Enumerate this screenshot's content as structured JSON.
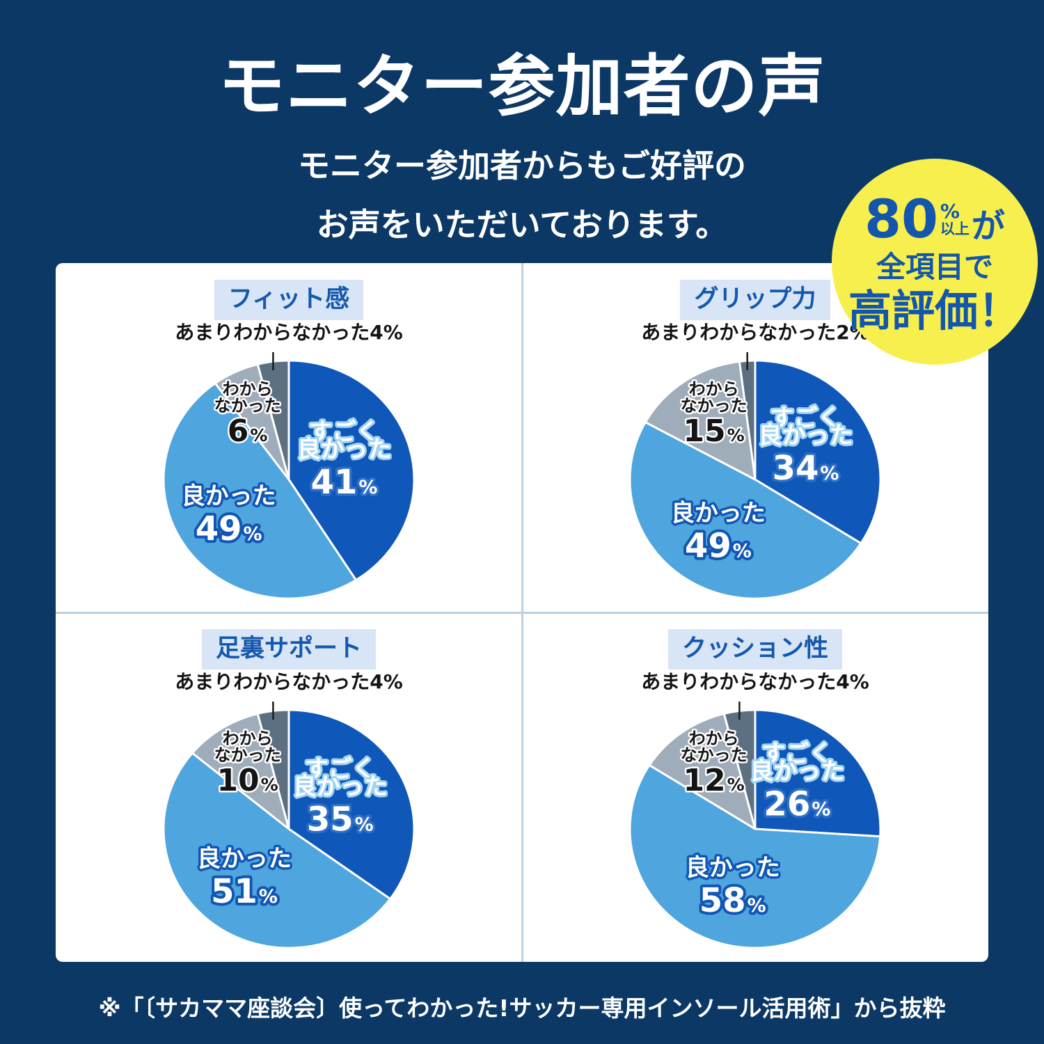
{
  "header": {
    "title": "モニター参加者の声",
    "subtitle_line1": "モニター参加者からもご好評の",
    "subtitle_line2": "お声をいただいております。"
  },
  "badge": {
    "big_number": "80",
    "percent_sign": "%",
    "ijou": "以上",
    "ga": "が",
    "line2": "全項目で",
    "line3": "高評価！"
  },
  "footer": {
    "note": "※「〔サカママ座談会〕使ってわかった!サッカー専用インソール活用術」から抜粋"
  },
  "colors": {
    "background": "#0c3866",
    "panel": "#ffffff",
    "chip_bg": "#d7e5f6",
    "chip_text": "#1458ad",
    "divider": "#bdd0df",
    "badge_bg": "#f7ef4e",
    "badge_text": "#1356ab",
    "light_text": "#ffffff"
  },
  "palette": [
    "#0f57b8",
    "#4fa5de",
    "#9fadba",
    "#5c7081"
  ],
  "chart_data": [
    {
      "type": "pie",
      "title": "フィット感",
      "unit": "%",
      "slices": [
        {
          "label": "すごく良かった",
          "lines": [
            "すごく",
            "良かった"
          ],
          "value": 41
        },
        {
          "label": "良かった",
          "lines": [
            "良かった"
          ],
          "value": 49
        },
        {
          "label": "わからなかった",
          "lines": [
            "わから",
            "なかった"
          ],
          "value": 6
        },
        {
          "label": "あまりわからなかった",
          "lines": [],
          "value": 4
        }
      ]
    },
    {
      "type": "pie",
      "title": "グリップ力",
      "unit": "%",
      "slices": [
        {
          "label": "すごく良かった",
          "lines": [
            "すごく",
            "良かった"
          ],
          "value": 34
        },
        {
          "label": "良かった",
          "lines": [
            "良かった"
          ],
          "value": 49
        },
        {
          "label": "わからなかった",
          "lines": [
            "わから",
            "なかった"
          ],
          "value": 15
        },
        {
          "label": "あまりわからなかった",
          "lines": [],
          "value": 2
        }
      ]
    },
    {
      "type": "pie",
      "title": "足裏サポート",
      "unit": "%",
      "slices": [
        {
          "label": "すごく良かった",
          "lines": [
            "すごく",
            "良かった"
          ],
          "value": 35
        },
        {
          "label": "良かった",
          "lines": [
            "良かった"
          ],
          "value": 51
        },
        {
          "label": "わからなかった",
          "lines": [
            "わから",
            "なかった"
          ],
          "value": 10
        },
        {
          "label": "あまりわからなかった",
          "lines": [],
          "value": 4
        }
      ]
    },
    {
      "type": "pie",
      "title": "クッション性",
      "unit": "%",
      "slices": [
        {
          "label": "すごく良かった",
          "lines": [
            "すごく",
            "良かった"
          ],
          "value": 26
        },
        {
          "label": "良かった",
          "lines": [
            "良かった"
          ],
          "value": 58
        },
        {
          "label": "わからなかった",
          "lines": [
            "わから",
            "なかった"
          ],
          "value": 12
        },
        {
          "label": "あまりわからなかった",
          "lines": [],
          "value": 4
        }
      ]
    }
  ]
}
